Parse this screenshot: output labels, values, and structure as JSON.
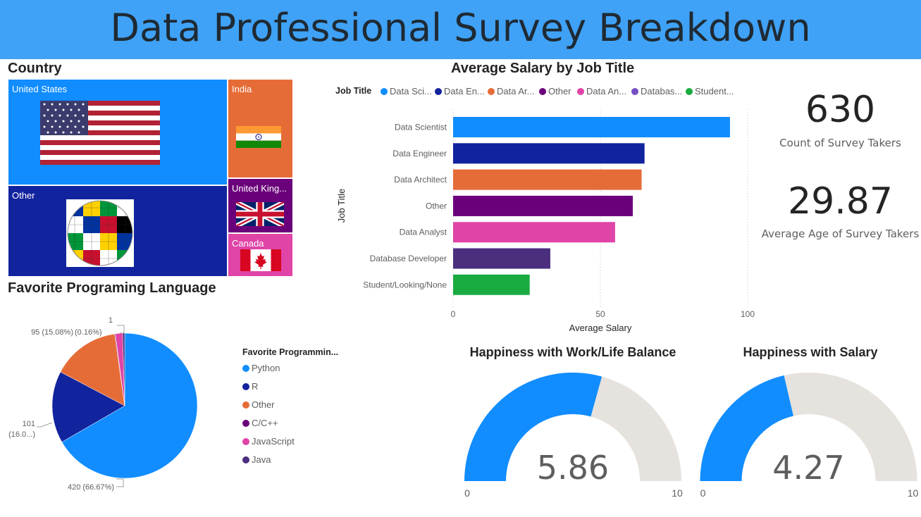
{
  "header": {
    "title": "Data Professional Survey Breakdown"
  },
  "country": {
    "title": "Country",
    "tiles": [
      {
        "label": "United States",
        "color": "#118dff",
        "flag": "us-flag-icon"
      },
      {
        "label": "Other",
        "color": "#12239e",
        "flag": "world-flags-globe-icon"
      },
      {
        "label": "India",
        "color": "#e66c37",
        "flag": "india-flag-icon"
      },
      {
        "label": "United King...",
        "color": "#6b007b",
        "flag": "uk-flag-icon"
      },
      {
        "label": "Canada",
        "color": "#e044a7",
        "flag": "canada-flag-icon"
      }
    ]
  },
  "salary_chart": {
    "title": "Average Salary by Job Title",
    "legend_title": "Job Title",
    "legend_items": [
      {
        "label": "Data Sci...",
        "color": "#118dff"
      },
      {
        "label": "Data En...",
        "color": "#12239e"
      },
      {
        "label": "Data Ar...",
        "color": "#e66c37"
      },
      {
        "label": "Other",
        "color": "#6b007b"
      },
      {
        "label": "Data An...",
        "color": "#e044a7"
      },
      {
        "label": "Databas...",
        "color": "#744ec2"
      },
      {
        "label": "Student...",
        "color": "#1aab40"
      }
    ]
  },
  "chart_data": [
    {
      "type": "bar",
      "orientation": "horizontal",
      "title": "Average Salary by Job Title",
      "xlabel": "Average Salary",
      "ylabel": "Job Title",
      "categories": [
        "Data Scientist",
        "Data Engineer",
        "Data Architect",
        "Other",
        "Data Analyst",
        "Database Developer",
        "Student/Looking/None"
      ],
      "values": [
        94,
        65,
        64,
        61,
        55,
        33,
        26
      ],
      "colors": [
        "#118dff",
        "#12239e",
        "#e66c37",
        "#6b007b",
        "#e044a7",
        "#4b2e7e",
        "#1aab40"
      ],
      "xlim": [
        0,
        100
      ],
      "xticks": [
        "0",
        "50",
        "100"
      ],
      "grid": true,
      "legend": "top"
    },
    {
      "type": "pie",
      "title": "Favorite Programing Language",
      "legend_title": "Favorite Programmin...",
      "categories": [
        "Python",
        "R",
        "Other",
        "C/C++",
        "JavaScript",
        "Java"
      ],
      "values": [
        420,
        101,
        95,
        1,
        10,
        3
      ],
      "colors": [
        "#118dff",
        "#12239e",
        "#e66c37",
        "#6b007b",
        "#e044a7",
        "#4b2e7e"
      ],
      "data_labels": [
        "420 (66.67%)",
        "101",
        "(16.0...)",
        "95 (15.08%)",
        "1",
        "(0.16%)"
      ],
      "legend": "right"
    }
  ],
  "pie": {
    "title": "Favorite Programing Language",
    "legend_title": "Favorite Programmin...",
    "legend": [
      {
        "label": "Python",
        "color": "#118dff"
      },
      {
        "label": "R",
        "color": "#12239e"
      },
      {
        "label": "Other",
        "color": "#e66c37"
      },
      {
        "label": "C/C++",
        "color": "#6b007b"
      },
      {
        "label": "JavaScript",
        "color": "#e044a7"
      },
      {
        "label": "Java",
        "color": "#4b2e7e"
      }
    ],
    "labels": {
      "python": "420 (66.67%)",
      "r_line1": "101",
      "r_line2": "(16.0...)",
      "other": "95 (15.08%)",
      "cpp_top": "1",
      "cpp_pct": "(0.16%)"
    }
  },
  "kpis": {
    "count": {
      "value": "630",
      "label": "Count of Survey Takers"
    },
    "age": {
      "value": "29.87",
      "label": "Average Age of Survey Takers"
    }
  },
  "gauges": {
    "work_life": {
      "title": "Happiness with Work/Life Balance",
      "value": 5.86,
      "display": "5.86",
      "min": 0,
      "max": 10,
      "min_label": "0",
      "max_label": "10"
    },
    "salary": {
      "title": "Happiness with Salary",
      "value": 4.27,
      "display": "4.27",
      "min": 0,
      "max": 10,
      "min_label": "0",
      "max_label": "10"
    },
    "fill_color": "#118dff",
    "track_color": "#e6e2dd"
  }
}
